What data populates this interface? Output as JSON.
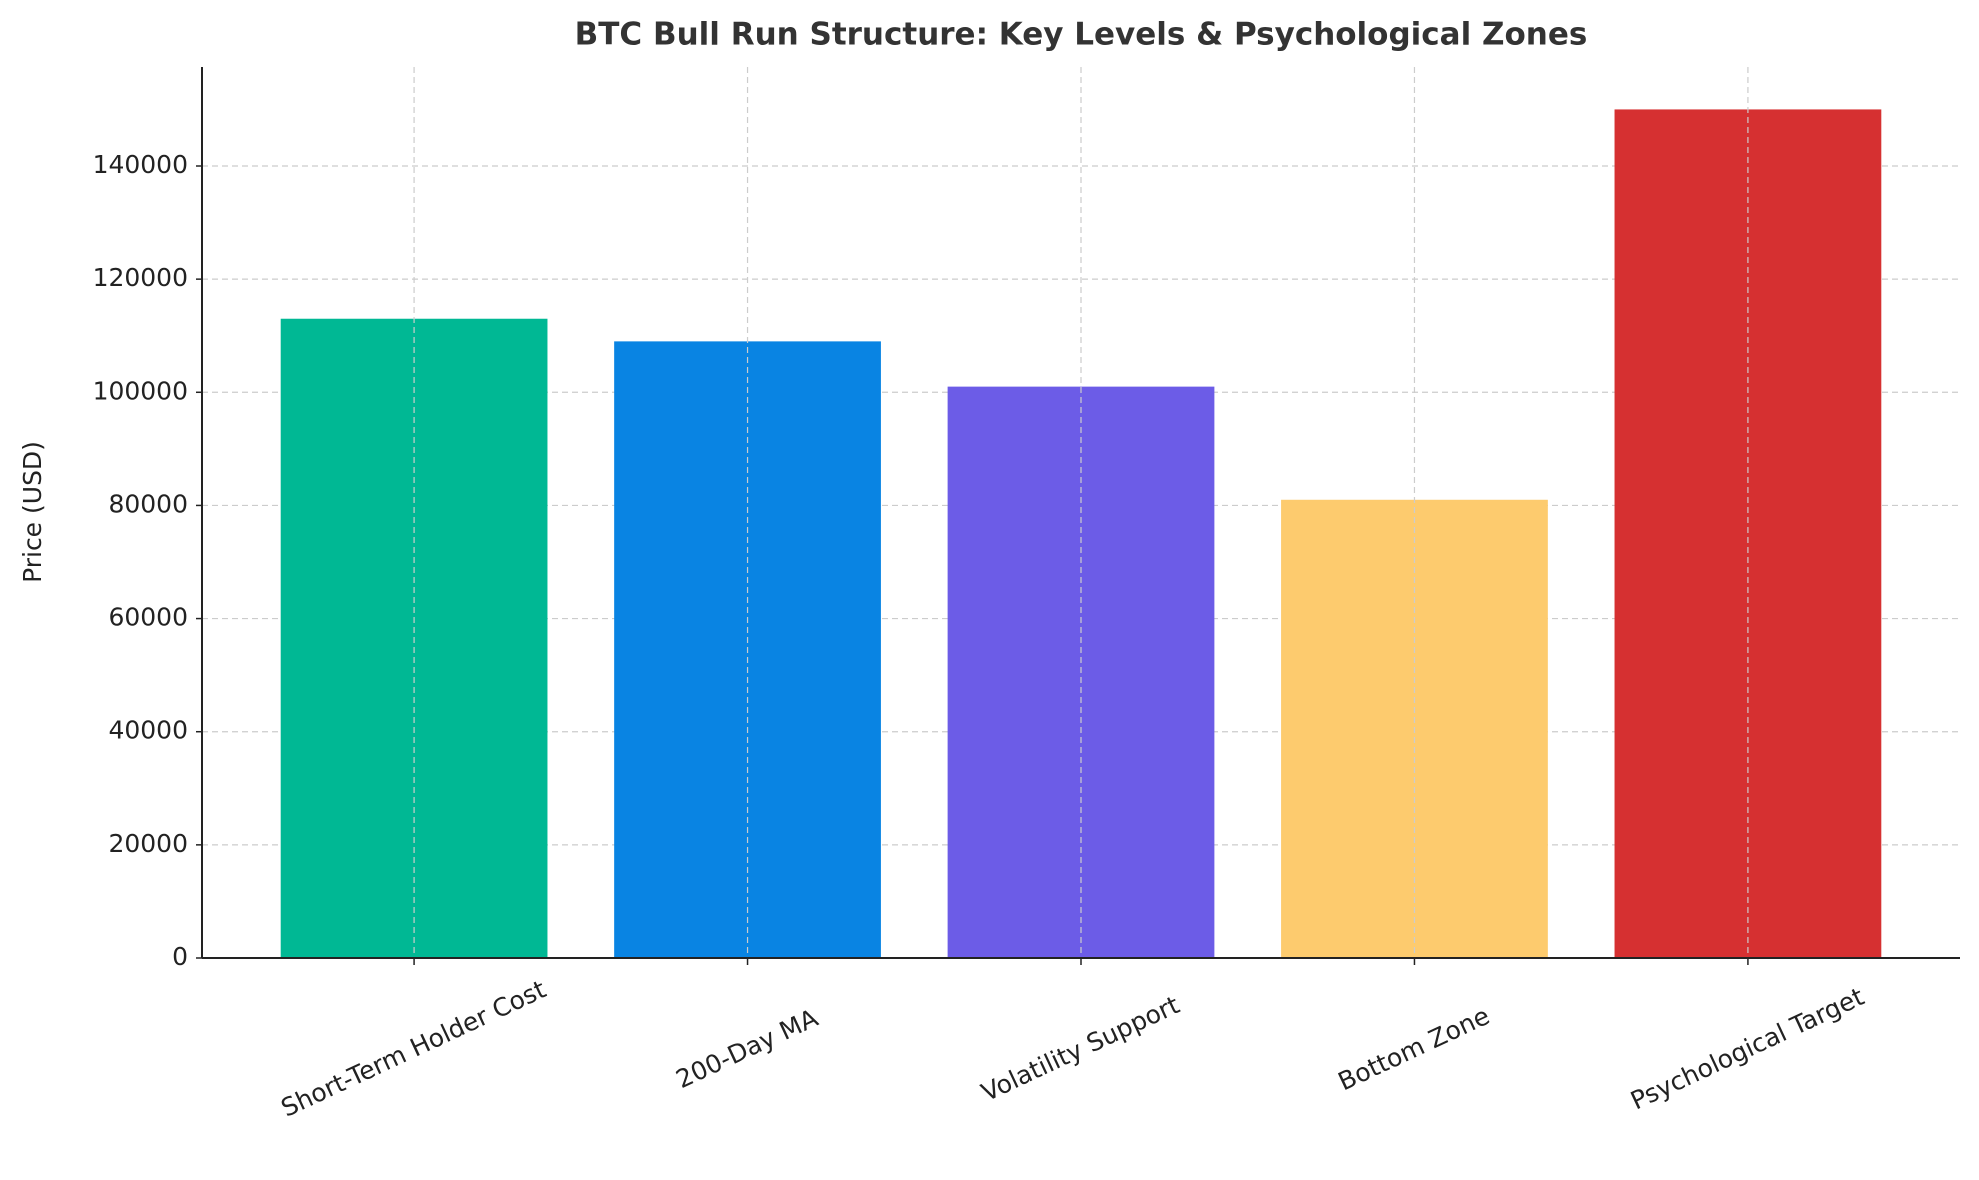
{
  "chart_data": {
    "type": "bar",
    "title": "BTC Bull Run Structure: Key Levels & Psychological Zones",
    "ylabel": "Price (USD)",
    "categories": [
      "Short-Term Holder Cost",
      "200-Day MA",
      "Volatility Support",
      "Bottom Zone",
      "Psychological Target"
    ],
    "values": [
      113000,
      109000,
      101000,
      81000,
      150000
    ],
    "colors": [
      "#00b894",
      "#0984e3",
      "#6c5ce7",
      "#fdcb6e",
      "#d63031"
    ],
    "ylim": [
      0,
      157500
    ],
    "yticks": [
      0,
      20000,
      40000,
      60000,
      80000,
      100000,
      120000,
      140000
    ],
    "grid": true
  }
}
